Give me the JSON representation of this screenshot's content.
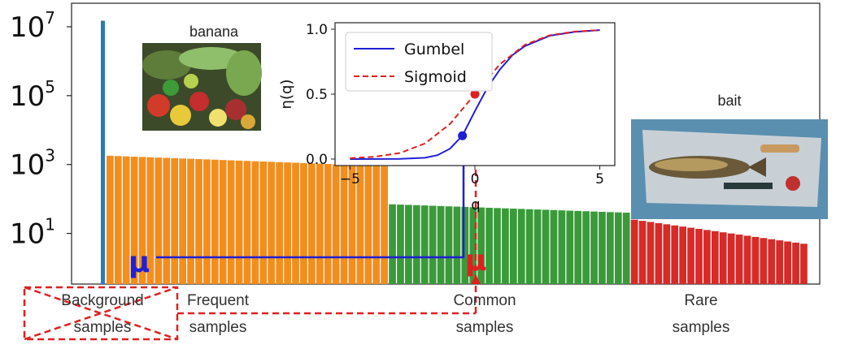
{
  "chart_data": [
    {
      "type": "bar",
      "yscale": "log",
      "ylim_exp": [
        0,
        7
      ],
      "y_tick_exponents": [
        1,
        3,
        5,
        7
      ],
      "y_tick_base": "10",
      "groups": [
        {
          "name": "Background",
          "color": "#2b7bb9",
          "count": 1,
          "value": 15000000.0
        },
        {
          "name": "Frequent",
          "color": "#f28e1e",
          "count": 35,
          "start": 1800,
          "end": 900
        },
        {
          "name": "Common",
          "color": "#3a9a3a",
          "count": 30,
          "start": 70,
          "end": 40
        },
        {
          "name": "Rare",
          "color": "#d62b28",
          "count": 22,
          "start": 25,
          "end": 5
        }
      ],
      "categories": [
        {
          "line1": "Background",
          "line2": "samples"
        },
        {
          "line1": "Frequent",
          "line2": "samples"
        },
        {
          "line1": "Common",
          "line2": "samples"
        },
        {
          "line1": "Rare",
          "line2": "samples"
        }
      ],
      "markers": {
        "blue_mu": "μ",
        "red_mu": "μ"
      },
      "images": [
        {
          "label": "banana"
        },
        {
          "label": "bait"
        }
      ]
    },
    {
      "type": "line",
      "xlabel": "q",
      "ylabel": "η(q)",
      "xlim": [
        -5.6,
        5.6
      ],
      "ylim": [
        -0.05,
        1.05
      ],
      "x_ticks": [
        "−5",
        "0",
        "5"
      ],
      "y_ticks": [
        "0.0",
        "0.5",
        "1.0"
      ],
      "legend": "top-left",
      "series": [
        {
          "name": "Gumbel",
          "color": "#1f1fd6",
          "style": "solid",
          "points": [
            [
              -5,
              0.0
            ],
            [
              -3,
              0.002
            ],
            [
              -2,
              0.01
            ],
            [
              -1.5,
              0.03
            ],
            [
              -1,
              0.08
            ],
            [
              -0.5,
              0.18
            ],
            [
              0,
              0.37
            ],
            [
              0.5,
              0.55
            ],
            [
              1,
              0.69
            ],
            [
              1.5,
              0.8
            ],
            [
              2,
              0.87
            ],
            [
              3,
              0.95
            ],
            [
              4,
              0.98
            ],
            [
              5,
              0.993
            ]
          ]
        },
        {
          "name": "Sigmoid",
          "color": "#e02020",
          "style": "dashed",
          "points": [
            [
              -5,
              0.007
            ],
            [
              -4,
              0.018
            ],
            [
              -3,
              0.047
            ],
            [
              -2,
              0.12
            ],
            [
              -1,
              0.27
            ],
            [
              0,
              0.5
            ],
            [
              1,
              0.73
            ],
            [
              2,
              0.88
            ],
            [
              3,
              0.953
            ],
            [
              4,
              0.982
            ],
            [
              5,
              0.993
            ]
          ]
        }
      ],
      "highlight_points": [
        {
          "x": -0.5,
          "y": 0.18,
          "color": "#1f1fd6"
        },
        {
          "x": 0.0,
          "y": 0.5,
          "color": "#e02020"
        }
      ]
    }
  ]
}
